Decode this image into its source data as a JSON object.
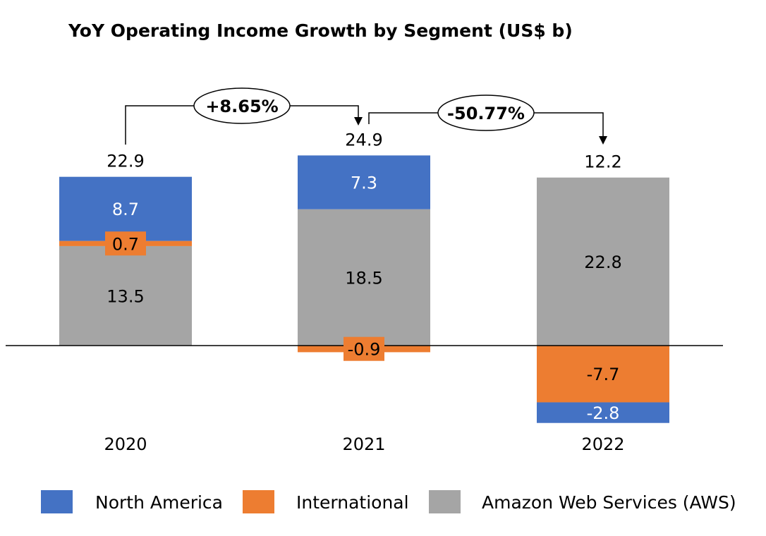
{
  "chart_data": {
    "type": "bar",
    "stacked": true,
    "title": "YoY Operating Income Growth by Segment (US$ b)",
    "categories": [
      "2020",
      "2021",
      "2022"
    ],
    "series": [
      {
        "name": "North America",
        "color": "#4472C4",
        "values": [
          8.7,
          7.3,
          -2.8
        ]
      },
      {
        "name": "International",
        "color": "#ED7D31",
        "values": [
          0.7,
          -0.9,
          -7.7
        ]
      },
      {
        "name": "Amazon Web Services (AWS)",
        "color": "#A5A5A5",
        "values": [
          13.5,
          18.5,
          22.8
        ]
      }
    ],
    "totals": [
      "22.9",
      "24.9",
      "12.2"
    ],
    "growth_annotations": [
      "+8.65%",
      "-50.77%"
    ],
    "legend_position": "bottom",
    "grid": false,
    "ylim": [
      -10.5,
      25
    ]
  }
}
